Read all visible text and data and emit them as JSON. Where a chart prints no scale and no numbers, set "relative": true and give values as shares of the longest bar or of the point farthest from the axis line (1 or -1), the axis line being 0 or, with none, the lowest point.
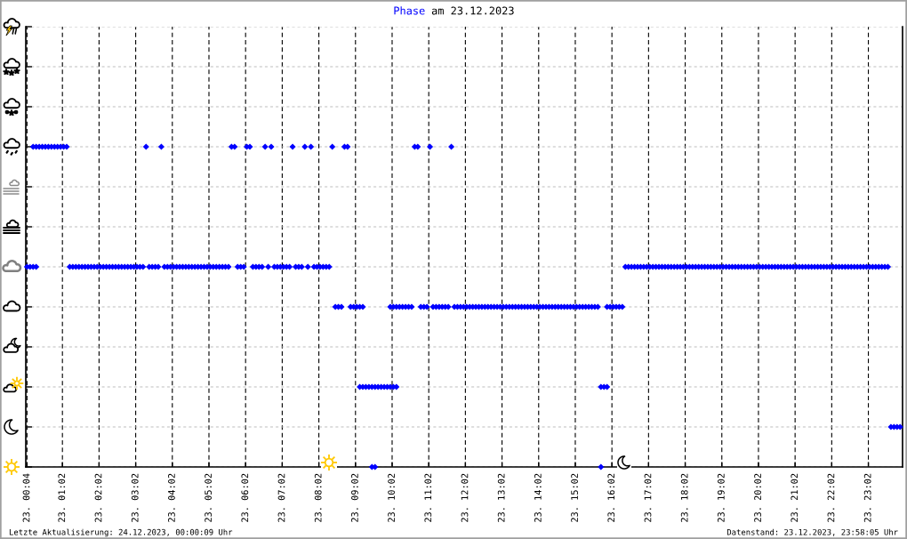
{
  "chart_data": {
    "type": "scatter",
    "title": "am 23.12.2023",
    "marker": "diamond",
    "grid": true,
    "tick_labels": "x",
    "relative": true,
    "xlim": [
      "2023-12-23T00:02",
      "2023-12-23T23:58"
    ],
    "xticks": [
      {
        "value": "2023-12-23T00:04",
        "label": "23. 00:04"
      },
      {
        "value": "2023-12-23T01:02",
        "label": "23. 01:02"
      },
      {
        "value": "2023-12-23T02:02",
        "label": "23. 02:02"
      },
      {
        "value": "2023-12-23T03:02",
        "label": "23. 03:02"
      },
      {
        "value": "2023-12-23T04:02",
        "label": "23. 04:02"
      },
      {
        "value": "2023-12-23T05:02",
        "label": "23. 05:02"
      },
      {
        "value": "2023-12-23T06:02",
        "label": "23. 06:02"
      },
      {
        "value": "2023-12-23T07:02",
        "label": "23. 07:02"
      },
      {
        "value": "2023-12-23T08:02",
        "label": "23. 08:02"
      },
      {
        "value": "2023-12-23T09:02",
        "label": "23. 09:02"
      },
      {
        "value": "2023-12-23T10:02",
        "label": "23. 10:02"
      },
      {
        "value": "2023-12-23T11:02",
        "label": "23. 11:02"
      },
      {
        "value": "2023-12-23T12:02",
        "label": "23. 12:02"
      },
      {
        "value": "2023-12-23T13:02",
        "label": "23. 13:02"
      },
      {
        "value": "2023-12-23T14:02",
        "label": "23. 14:02"
      },
      {
        "value": "2023-12-23T15:02",
        "label": "23. 15:02"
      },
      {
        "value": "2023-12-23T16:02",
        "label": "23. 16:02"
      },
      {
        "value": "2023-12-23T17:02",
        "label": "23. 17:02"
      },
      {
        "value": "2023-12-23T18:02",
        "label": "23. 18:02"
      },
      {
        "value": "2023-12-23T19:02",
        "label": "23. 19:02"
      },
      {
        "value": "2023-12-23T20:02",
        "label": "23. 20:02"
      },
      {
        "value": "2023-12-23T21:02",
        "label": "23. 21:02"
      },
      {
        "value": "2023-12-23T22:02",
        "label": "23. 22:02"
      },
      {
        "value": "2023-12-23T23:02",
        "label": "23. 23:02"
      }
    ],
    "annotations": [
      "Letzte Aktualisierung: 24.12.2023, 00:00:09 Uhr",
      "Datenstand: 23.12.2023, 23:58:05 Uhr"
    ],
    "series": [
      {
        "name": "Phase",
        "color": "#0000ff",
        "x": [
          "2023-12-23T00:04",
          "2023-12-23T00:09",
          "2023-12-23T00:14",
          "2023-12-23T00:14",
          "2023-12-23T00:19",
          "2023-12-23T00:19",
          "2023-12-23T00:24",
          "2023-12-23T00:29",
          "2023-12-23T00:34",
          "2023-12-23T00:39",
          "2023-12-23T00:44",
          "2023-12-23T00:49",
          "2023-12-23T00:54",
          "2023-12-23T00:59",
          "2023-12-23T01:04",
          "2023-12-23T01:09",
          "2023-12-23T01:14",
          "2023-12-23T01:19",
          "2023-12-23T01:24",
          "2023-12-23T01:29",
          "2023-12-23T01:34",
          "2023-12-23T01:39",
          "2023-12-23T01:44",
          "2023-12-23T01:49",
          "2023-12-23T01:54",
          "2023-12-23T01:59",
          "2023-12-23T02:04",
          "2023-12-23T02:09",
          "2023-12-23T02:14",
          "2023-12-23T02:19",
          "2023-12-23T02:24",
          "2023-12-23T02:29",
          "2023-12-23T02:34",
          "2023-12-23T02:39",
          "2023-12-23T02:44",
          "2023-12-23T02:49",
          "2023-12-23T02:54",
          "2023-12-23T02:59",
          "2023-12-23T03:04",
          "2023-12-23T03:09",
          "2023-12-23T03:14",
          "2023-12-23T03:19",
          "2023-12-23T03:24",
          "2023-12-23T03:29",
          "2023-12-23T03:34",
          "2023-12-23T03:39",
          "2023-12-23T03:44",
          "2023-12-23T03:49",
          "2023-12-23T03:54",
          "2023-12-23T03:59",
          "2023-12-23T04:04",
          "2023-12-23T04:09",
          "2023-12-23T04:14",
          "2023-12-23T04:19",
          "2023-12-23T04:24",
          "2023-12-23T04:29",
          "2023-12-23T04:34",
          "2023-12-23T04:39",
          "2023-12-23T04:44",
          "2023-12-23T04:49",
          "2023-12-23T04:54",
          "2023-12-23T04:59",
          "2023-12-23T05:04",
          "2023-12-23T05:09",
          "2023-12-23T05:14",
          "2023-12-23T05:19",
          "2023-12-23T05:24",
          "2023-12-23T05:29",
          "2023-12-23T05:34",
          "2023-12-23T05:39",
          "2023-12-23T05:44",
          "2023-12-23T05:49",
          "2023-12-23T05:54",
          "2023-12-23T05:59",
          "2023-12-23T06:04",
          "2023-12-23T06:09",
          "2023-12-23T06:14",
          "2023-12-23T06:19",
          "2023-12-23T06:24",
          "2023-12-23T06:29",
          "2023-12-23T06:34",
          "2023-12-23T06:39",
          "2023-12-23T06:44",
          "2023-12-23T06:49",
          "2023-12-23T06:54",
          "2023-12-23T06:59",
          "2023-12-23T07:04",
          "2023-12-23T07:09",
          "2023-12-23T07:14",
          "2023-12-23T07:19",
          "2023-12-23T07:24",
          "2023-12-23T07:29",
          "2023-12-23T07:34",
          "2023-12-23T07:39",
          "2023-12-23T07:44",
          "2023-12-23T07:49",
          "2023-12-23T07:54",
          "2023-12-23T07:59",
          "2023-12-23T08:04",
          "2023-12-23T08:09",
          "2023-12-23T08:14",
          "2023-12-23T08:19",
          "2023-12-23T08:24",
          "2023-12-23T08:29",
          "2023-12-23T08:34",
          "2023-12-23T08:39",
          "2023-12-23T08:44",
          "2023-12-23T08:49",
          "2023-12-23T08:54",
          "2023-12-23T08:59",
          "2023-12-23T09:04",
          "2023-12-23T09:09",
          "2023-12-23T09:09",
          "2023-12-23T09:14",
          "2023-12-23T09:14",
          "2023-12-23T09:19",
          "2023-12-23T09:24",
          "2023-12-23T09:29",
          "2023-12-23T09:29",
          "2023-12-23T09:34",
          "2023-12-23T09:34",
          "2023-12-23T09:39",
          "2023-12-23T09:44",
          "2023-12-23T09:49",
          "2023-12-23T09:54",
          "2023-12-23T09:59",
          "2023-12-23T09:59",
          "2023-12-23T10:04",
          "2023-12-23T10:04",
          "2023-12-23T10:09",
          "2023-12-23T10:09",
          "2023-12-23T10:14",
          "2023-12-23T10:19",
          "2023-12-23T10:24",
          "2023-12-23T10:29",
          "2023-12-23T10:34",
          "2023-12-23T10:39",
          "2023-12-23T10:44",
          "2023-12-23T10:49",
          "2023-12-23T10:54",
          "2023-12-23T10:59",
          "2023-12-23T11:04",
          "2023-12-23T11:09",
          "2023-12-23T11:14",
          "2023-12-23T11:19",
          "2023-12-23T11:24",
          "2023-12-23T11:29",
          "2023-12-23T11:34",
          "2023-12-23T11:39",
          "2023-12-23T11:44",
          "2023-12-23T11:49",
          "2023-12-23T11:54",
          "2023-12-23T11:59",
          "2023-12-23T12:04",
          "2023-12-23T12:09",
          "2023-12-23T12:14",
          "2023-12-23T12:19",
          "2023-12-23T12:24",
          "2023-12-23T12:29",
          "2023-12-23T12:34",
          "2023-12-23T12:39",
          "2023-12-23T12:44",
          "2023-12-23T12:49",
          "2023-12-23T12:54",
          "2023-12-23T12:59",
          "2023-12-23T13:04",
          "2023-12-23T13:09",
          "2023-12-23T13:14",
          "2023-12-23T13:19",
          "2023-12-23T13:24",
          "2023-12-23T13:29",
          "2023-12-23T13:34",
          "2023-12-23T13:39",
          "2023-12-23T13:44",
          "2023-12-23T13:49",
          "2023-12-23T13:54",
          "2023-12-23T13:59",
          "2023-12-23T14:04",
          "2023-12-23T14:09",
          "2023-12-23T14:14",
          "2023-12-23T14:19",
          "2023-12-23T14:24",
          "2023-12-23T14:29",
          "2023-12-23T14:34",
          "2023-12-23T14:39",
          "2023-12-23T14:44",
          "2023-12-23T14:49",
          "2023-12-23T14:54",
          "2023-12-23T14:59",
          "2023-12-23T15:04",
          "2023-12-23T15:09",
          "2023-12-23T15:14",
          "2023-12-23T15:19",
          "2023-12-23T15:24",
          "2023-12-23T15:29",
          "2023-12-23T15:34",
          "2023-12-23T15:39",
          "2023-12-23T15:44",
          "2023-12-23T15:44",
          "2023-12-23T15:49",
          "2023-12-23T15:54",
          "2023-12-23T15:54",
          "2023-12-23T15:59",
          "2023-12-23T16:04",
          "2023-12-23T16:09",
          "2023-12-23T16:14",
          "2023-12-23T16:19",
          "2023-12-23T16:24",
          "2023-12-23T16:29",
          "2023-12-23T16:34",
          "2023-12-23T16:39",
          "2023-12-23T16:44",
          "2023-12-23T16:49",
          "2023-12-23T16:54",
          "2023-12-23T16:59",
          "2023-12-23T17:04",
          "2023-12-23T17:09",
          "2023-12-23T17:14",
          "2023-12-23T17:19",
          "2023-12-23T17:24",
          "2023-12-23T17:29",
          "2023-12-23T17:34",
          "2023-12-23T17:39",
          "2023-12-23T17:44",
          "2023-12-23T17:49",
          "2023-12-23T17:54",
          "2023-12-23T17:59",
          "2023-12-23T18:04",
          "2023-12-23T18:09",
          "2023-12-23T18:14",
          "2023-12-23T18:19",
          "2023-12-23T18:24",
          "2023-12-23T18:29",
          "2023-12-23T18:34",
          "2023-12-23T18:39",
          "2023-12-23T18:44",
          "2023-12-23T18:49",
          "2023-12-23T18:54",
          "2023-12-23T18:59",
          "2023-12-23T19:04",
          "2023-12-23T19:09",
          "2023-12-23T19:14",
          "2023-12-23T19:19",
          "2023-12-23T19:24",
          "2023-12-23T19:29",
          "2023-12-23T19:34",
          "2023-12-23T19:39",
          "2023-12-23T19:44",
          "2023-12-23T19:49",
          "2023-12-23T19:54",
          "2023-12-23T19:59",
          "2023-12-23T20:04",
          "2023-12-23T20:09",
          "2023-12-23T20:14",
          "2023-12-23T20:19",
          "2023-12-23T20:24",
          "2023-12-23T20:29",
          "2023-12-23T20:34",
          "2023-12-23T20:39",
          "2023-12-23T20:44",
          "2023-12-23T20:49",
          "2023-12-23T20:54",
          "2023-12-23T20:59",
          "2023-12-23T21:04",
          "2023-12-23T21:09",
          "2023-12-23T21:14",
          "2023-12-23T21:19",
          "2023-12-23T21:24",
          "2023-12-23T21:29",
          "2023-12-23T21:34",
          "2023-12-23T21:39",
          "2023-12-23T21:44",
          "2023-12-23T21:49",
          "2023-12-23T21:54",
          "2023-12-23T21:59",
          "2023-12-23T22:04",
          "2023-12-23T22:09",
          "2023-12-23T22:14",
          "2023-12-23T22:19",
          "2023-12-23T22:24",
          "2023-12-23T22:29",
          "2023-12-23T22:34",
          "2023-12-23T22:39",
          "2023-12-23T22:44",
          "2023-12-23T22:49",
          "2023-12-23T22:54",
          "2023-12-23T22:59",
          "2023-12-23T23:04",
          "2023-12-23T23:09",
          "2023-12-23T23:14",
          "2023-12-23T23:19",
          "2023-12-23T23:24",
          "2023-12-23T23:29",
          "2023-12-23T23:34",
          "2023-12-23T23:39",
          "2023-12-23T23:44",
          "2023-12-23T23:49",
          "2023-12-23T23:54"
        ],
        "values": [
          0.625,
          0.625,
          0.625,
          1,
          0.625,
          1,
          1,
          1,
          1,
          1,
          1,
          1,
          1,
          1,
          1,
          1,
          0.625,
          0.625,
          0.625,
          0.625,
          0.625,
          0.625,
          0.625,
          0.625,
          0.625,
          0.625,
          0.625,
          0.625,
          0.625,
          0.625,
          0.625,
          0.625,
          0.625,
          0.625,
          0.625,
          0.625,
          0.625,
          0.625,
          0.625,
          0.625,
          0.625,
          1,
          0.625,
          0.625,
          0.625,
          0.625,
          1,
          0.625,
          0.625,
          0.625,
          0.625,
          0.625,
          0.625,
          0.625,
          0.625,
          0.625,
          0.625,
          0.625,
          0.625,
          0.625,
          0.625,
          0.625,
          0.625,
          0.625,
          0.625,
          0.625,
          0.625,
          0.625,
          0.625,
          1,
          1,
          0.625,
          0.625,
          0.625,
          1,
          1,
          0.625,
          0.625,
          0.625,
          0.625,
          1,
          0.625,
          1,
          0.625,
          0.625,
          0.625,
          0.625,
          0.625,
          0.625,
          1,
          0.625,
          0.625,
          0.625,
          1,
          0.625,
          1,
          0.625,
          0.625,
          0.625,
          0.625,
          0.625,
          0.625,
          1,
          0.5,
          0.5,
          0.5,
          1,
          1,
          0.5,
          0.5,
          0.5,
          0.5,
          0.25,
          0.5,
          0.25,
          0.25,
          0.25,
          0.25,
          0,
          0.25,
          0,
          0.25,
          0.25,
          0.25,
          0.25,
          0.25,
          0.5,
          0.25,
          0.5,
          0.25,
          0.5,
          0.5,
          0.5,
          0.5,
          0.5,
          0.5,
          1,
          1,
          0.5,
          0.5,
          0.5,
          1,
          0.5,
          0.5,
          0.5,
          0.5,
          0.5,
          0.5,
          1,
          0.5,
          0.5,
          0.5,
          0.5,
          0.5,
          0.5,
          0.5,
          0.5,
          0.5,
          0.5,
          0.5,
          0.5,
          0.5,
          0.5,
          0.5,
          0.5,
          0.5,
          0.5,
          0.5,
          0.5,
          0.5,
          0.5,
          0.5,
          0.5,
          0.5,
          0.5,
          0.5,
          0.5,
          0.5,
          0.5,
          0.5,
          0.5,
          0.5,
          0.5,
          0.5,
          0.5,
          0.5,
          0.5,
          0.5,
          0.5,
          0.5,
          0.5,
          0.5,
          0.5,
          0.5,
          0.5,
          0.5,
          0.5,
          0,
          0.25,
          0.25,
          0.25,
          0.5,
          0.5,
          0.5,
          0.5,
          0.5,
          0.5,
          0.625,
          0.625,
          0.625,
          0.625,
          0.625,
          0.625,
          0.625,
          0.625,
          0.625,
          0.625,
          0.625,
          0.625,
          0.625,
          0.625,
          0.625,
          0.625,
          0.625,
          0.625,
          0.625,
          0.625,
          0.625,
          0.625,
          0.625,
          0.625,
          0.625,
          0.625,
          0.625,
          0.625,
          0.625,
          0.625,
          0.625,
          0.625,
          0.625,
          0.625,
          0.625,
          0.625,
          0.625,
          0.625,
          0.625,
          0.625,
          0.625,
          0.625,
          0.625,
          0.625,
          0.625,
          0.625,
          0.625,
          0.625,
          0.625,
          0.625,
          0.625,
          0.625,
          0.625,
          0.625,
          0.625,
          0.625,
          0.625,
          0.625,
          0.625,
          0.625,
          0.625,
          0.625,
          0.625,
          0.625,
          0.625,
          0.625,
          0.625,
          0.625,
          0.625,
          0.625,
          0.625,
          0.625,
          0.625,
          0.625,
          0.625,
          0.625,
          0.625,
          0.625,
          0.625,
          0.625,
          0.625,
          0.625,
          0.625,
          0.625,
          0.625,
          0.625,
          0.625,
          0.125,
          0.125,
          0.125,
          0.125
        ]
      }
    ]
  }
}
